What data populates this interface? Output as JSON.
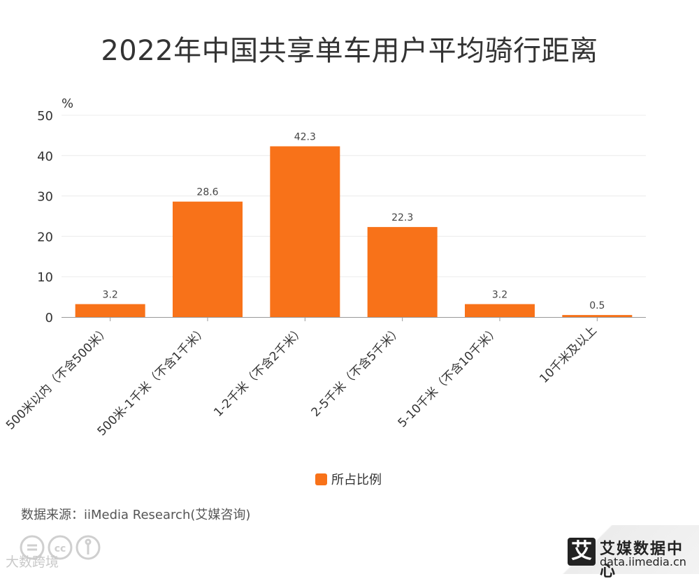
{
  "chart_data": {
    "type": "bar",
    "title": "2022年中国共享单车用户平均骑行距离",
    "ylabel": "%",
    "ylim": [
      0,
      50
    ],
    "yticks": [
      0,
      10,
      20,
      30,
      40,
      50
    ],
    "grid": true,
    "categories": [
      "500米以内（不含500米）",
      "500米-1千米（不含1千米）",
      "1-2千米（不含2千米）",
      "2-5千米（不含5千米）",
      "5-10千米（不含10千米）",
      "10千米及以上"
    ],
    "series": [
      {
        "name": "所占比例",
        "values": [
          3.2,
          28.6,
          42.3,
          22.3,
          3.2,
          0.5
        ],
        "color": "#f87219"
      }
    ],
    "legend_position": "bottom"
  },
  "source": "数据来源：iiMedia Research(艾媒咨询)",
  "brand": {
    "name": "艾媒数据中心",
    "url": "data.iimedia.cn",
    "logo_char": "艾"
  },
  "watermark": "大数跨境"
}
